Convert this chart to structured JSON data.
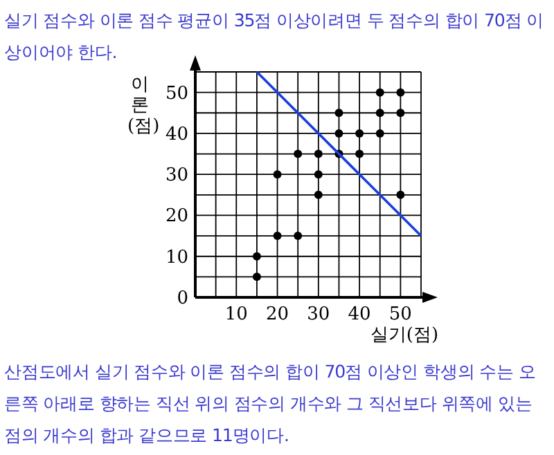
{
  "chart_data": {
    "type": "scatter",
    "title": "실기 점수와 이론 점수 평균이 35점 이상이려면 두 점수의 합이 70점 이상이어야 한다.",
    "annotations": [
      "산점도에서 실기 점수와 이론 점수의 합이 70점 이상인 학생의 수는 오른쪽 아래로 향하는 직선 위의 점수의 개수와 그 직선보다 위쪽에 있는 점의 개수의 합과 같으므로 11명이다."
    ],
    "xlabel": "실기(점)",
    "ylabel": "이론(점)",
    "xlim": [
      0,
      55
    ],
    "ylim": [
      0,
      55
    ],
    "xticks": [
      {
        "value": 5,
        "label": null
      },
      10,
      {
        "value": 15,
        "label": null
      },
      20,
      {
        "value": 25,
        "label": null
      },
      30,
      {
        "value": 35,
        "label": null
      },
      40,
      {
        "value": 45,
        "label": null
      },
      50,
      {
        "value": 55,
        "label": null
      }
    ],
    "yticks": [
      0,
      {
        "value": 5,
        "label": null
      },
      10,
      {
        "value": 15,
        "label": null
      },
      20,
      {
        "value": 25,
        "label": null
      },
      30,
      {
        "value": 35,
        "label": null
      },
      40,
      {
        "value": 45,
        "label": null
      },
      50,
      {
        "value": 55,
        "label": null
      }
    ],
    "grid": true,
    "marker": "circle",
    "series": [
      {
        "color": "#000000",
        "x": [
          15,
          15,
          20,
          25,
          20,
          25,
          30,
          30,
          30,
          35,
          35,
          35,
          40,
          40,
          45,
          45,
          45,
          50,
          50,
          50
        ],
        "values": [
          5,
          10,
          15,
          15,
          30,
          35,
          35,
          30,
          25,
          35,
          40,
          45,
          35,
          40,
          40,
          45,
          50,
          50,
          45,
          25
        ]
      },
      {
        "type": "line",
        "marker": "none",
        "color": "#1a3fe0",
        "x": [
          15,
          55
        ],
        "values": [
          55,
          15
        ]
      }
    ]
  }
}
